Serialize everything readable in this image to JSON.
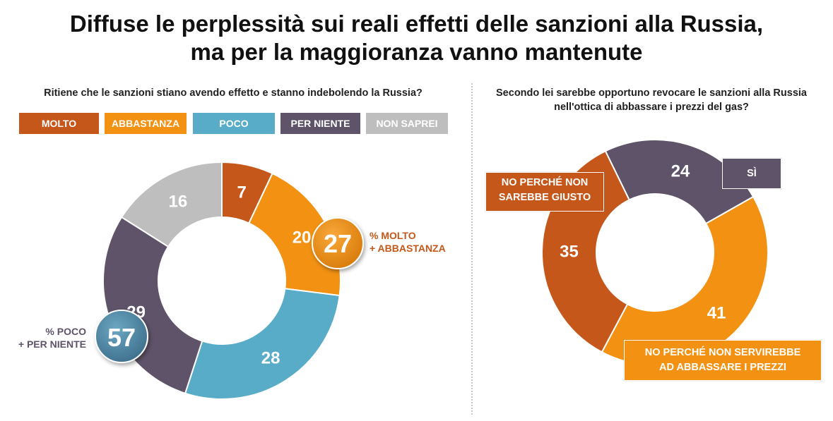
{
  "title": {
    "line1": "Diffuse le perplessità sui reali effetti delle sanzioni alla Russia,",
    "line2": "ma per la maggioranza vanno mantenute"
  },
  "colors": {
    "molto": "#C5571A",
    "abbastanza": "#F29112",
    "poco": "#58ACC8",
    "per_niente": "#5E5368",
    "non_saprei": "#BEBEBE"
  },
  "left": {
    "question": "Ritiene che le sanzioni stiano avendo effetto e stanno indebolendo la Russia?",
    "legend": [
      {
        "label": "MOLTO",
        "color": "#C5571A"
      },
      {
        "label": "ABBASTANZA",
        "color": "#F29112"
      },
      {
        "label": "POCO",
        "color": "#58ACC8"
      },
      {
        "label": "PER NIENTE",
        "color": "#5E5368"
      },
      {
        "label": "NON SAPREI",
        "color": "#BEBEBE"
      }
    ],
    "callout_positive": {
      "value": "27",
      "line1": "% MOLTO",
      "line2": "+ ABBASTANZA"
    },
    "callout_negative": {
      "value": "57",
      "line1": "% POCO",
      "line2": "+ PER NIENTE"
    }
  },
  "right": {
    "question_line1": "Secondo lei sarebbe opportuno revocare le sanzioni alla Russia",
    "question_line2": "nell'ottica di abbassare i prezzi del gas?",
    "labels": {
      "si": "SÌ",
      "no_giusto_line1": "NO PERCHÉ NON",
      "no_giusto_line2": "SAREBBE GIUSTO",
      "no_servirebbe_line1": "NO PERCHÉ NON SERVIREBBE",
      "no_servirebbe_line2": "AD ABBASSARE I PREZZI"
    }
  },
  "chart_data": [
    {
      "type": "pie",
      "title": "Ritiene che le sanzioni stiano avendo effetto e stanno indebolendo la Russia?",
      "categories": [
        "MOLTO",
        "ABBASTANZA",
        "POCO",
        "PER NIENTE",
        "NON SAPREI"
      ],
      "values": [
        7,
        20,
        28,
        29,
        16
      ],
      "colors": [
        "#C5571A",
        "#F29112",
        "#58ACC8",
        "#5E5368",
        "#BEBEBE"
      ],
      "donut": true
    },
    {
      "type": "pie",
      "title": "Secondo lei sarebbe opportuno revocare le sanzioni alla Russia nell'ottica di abbassare i prezzi del gas?",
      "categories": [
        "SÌ",
        "NO PERCHÉ NON SERVIREBBE AD ABBASSARE I PREZZI",
        "NO PERCHÉ NON SAREBBE GIUSTO"
      ],
      "values": [
        24,
        41,
        35
      ],
      "colors": [
        "#5E5368",
        "#F29112",
        "#C5571A"
      ],
      "donut": true
    }
  ]
}
